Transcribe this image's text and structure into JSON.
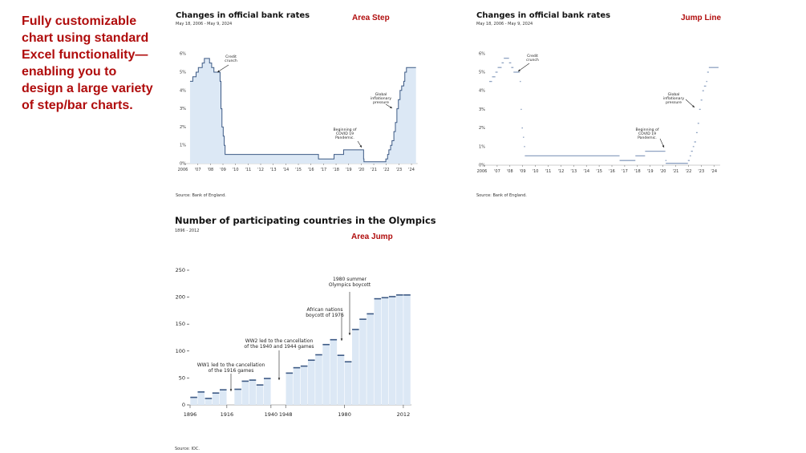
{
  "intro_text": "Fully customizable chart using standard Excel functionality—enabling you to design a large variety of step/bar charts.",
  "colors": {
    "accent": "#b00c0c",
    "area": "#dce8f5",
    "line": "#3d5a85",
    "jump_line": "#8fa3c2"
  },
  "chart_data": [
    {
      "type": "area",
      "style_label": "Area Step",
      "title": "Changes in official bank rates",
      "subtitle": "May 18, 2006 - May 9, 2024",
      "source": "Source: Bank of England.",
      "ylim": [
        0,
        6
      ],
      "yticks": [
        "0%",
        "1%",
        "2%",
        "3%",
        "4%",
        "5%",
        "6%"
      ],
      "xticks": [
        "2006",
        "'07",
        "'08",
        "'09",
        "'10",
        "'11",
        "'12",
        "'13",
        "'14",
        "'15",
        "'16",
        "'17",
        "'18",
        "'19",
        "'20",
        "'21",
        "'22",
        "'23",
        "'24"
      ],
      "annotations": [
        {
          "lines": [
            "Credit",
            "crunch"
          ]
        },
        {
          "lines": [
            "Global",
            "inflationary",
            "pressure"
          ]
        },
        {
          "lines": [
            "Beginning of",
            "COVID 19",
            "Pandemic."
          ]
        }
      ]
    },
    {
      "type": "line",
      "style_label": "Jump Line",
      "title": "Changes in official bank rates",
      "subtitle": "May 18, 2006 - May 9, 2024",
      "source": "Source: Bank of England.",
      "ylim": [
        0,
        6
      ],
      "yticks": [
        "0%",
        "1%",
        "2%",
        "3%",
        "4%",
        "5%",
        "6%"
      ],
      "xticks": [
        "2006",
        "'07",
        "'08",
        "'09",
        "'10",
        "'11",
        "'12",
        "'13",
        "'14",
        "'15",
        "'16",
        "'17",
        "'18",
        "'19",
        "'20",
        "'21",
        "'22",
        "'23",
        "'24"
      ],
      "annotations": [
        {
          "lines": [
            "Credit",
            "crunch"
          ]
        },
        {
          "lines": [
            "Global",
            "inflationary",
            "pressure"
          ]
        },
        {
          "lines": [
            "Beginning of",
            "COVID 19",
            "Pandemic."
          ]
        }
      ]
    },
    {
      "type": "bar",
      "style_label": "Area Jump",
      "title": "Number of participating countries in the Olympics",
      "subtitle": "1896 - 2012",
      "source": "Source: IOC.",
      "ylim": [
        0,
        250
      ],
      "yticks": [
        "0",
        "50",
        "100",
        "150",
        "200",
        "250"
      ],
      "xticks": [
        "1896",
        "1916",
        "1940",
        "1948",
        "1980",
        "2012"
      ],
      "years": [
        1896,
        1900,
        1904,
        1908,
        1912,
        1920,
        1924,
        1928,
        1932,
        1936,
        1948,
        1952,
        1956,
        1960,
        1964,
        1968,
        1972,
        1976,
        1980,
        1984,
        1988,
        1992,
        1996,
        2000,
        2004,
        2008,
        2012
      ],
      "values": [
        14,
        24,
        12,
        22,
        28,
        29,
        44,
        46,
        37,
        49,
        59,
        69,
        72,
        83,
        93,
        112,
        121,
        92,
        80,
        140,
        159,
        169,
        197,
        199,
        201,
        204,
        204
      ],
      "annotations": [
        {
          "lines": [
            "WW1 led to the cancellation",
            "of the 1916 games"
          ]
        },
        {
          "lines": [
            "WW2 led to the cancellation",
            "of the 1940 and 1944 games"
          ]
        },
        {
          "lines": [
            "African nations",
            "boycott of 1976"
          ]
        },
        {
          "lines": [
            "1980 summer",
            "Olympics boycott"
          ]
        }
      ]
    }
  ],
  "bank_rate_steps": {
    "dates": [
      2006.38,
      2006.6,
      2006.86,
      2007.04,
      2007.35,
      2007.52,
      2007.93,
      2008.1,
      2008.28,
      2008.77,
      2008.84,
      2008.92,
      2009.02,
      2009.1,
      2009.17,
      2016.6,
      2017.84,
      2018.6,
      2020.19,
      2020.22,
      2021.96,
      2022.1,
      2022.2,
      2022.34,
      2022.45,
      2022.6,
      2022.72,
      2022.84,
      2022.96,
      2023.09,
      2023.22,
      2023.39,
      2023.47,
      2023.6
    ],
    "rates": [
      4.5,
      4.75,
      5.0,
      5.25,
      5.5,
      5.75,
      5.5,
      5.25,
      5.0,
      4.5,
      3.0,
      2.0,
      1.5,
      1.0,
      0.5,
      0.25,
      0.5,
      0.75,
      0.25,
      0.1,
      0.25,
      0.5,
      0.75,
      1.0,
      1.25,
      1.75,
      2.25,
      3.0,
      3.5,
      4.0,
      4.25,
      4.5,
      5.0,
      5.25
    ],
    "end": 2024.36
  }
}
